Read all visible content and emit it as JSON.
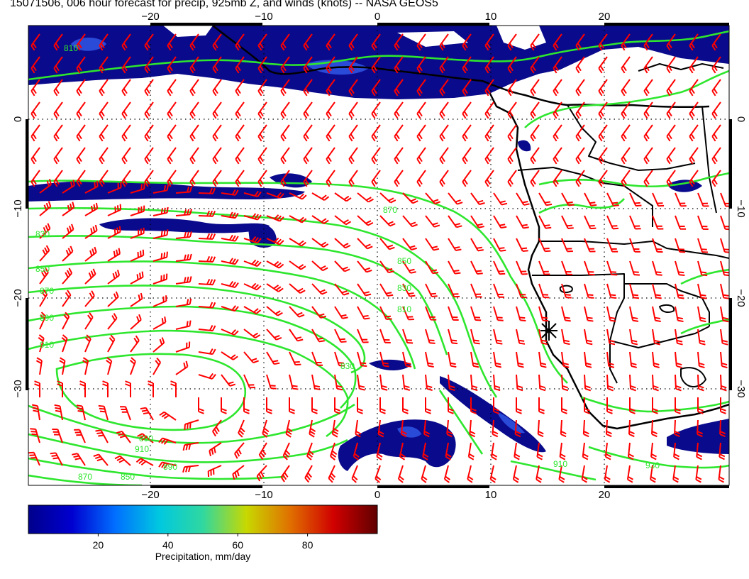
{
  "title": "15071506, 006 hour forecast for precip, 925mb Z, and winds (knots) -- NASA GEOS5",
  "map": {
    "lon_ticks": [
      "−20",
      "−10",
      "0",
      "10",
      "20"
    ],
    "lat_ticks": [
      "0",
      "−10",
      "−20",
      "−30"
    ],
    "contour_labels": [
      "810",
      "830",
      "850",
      "870",
      "890",
      "910",
      "910",
      "890",
      "870",
      "850",
      "830",
      "810",
      "830",
      "850",
      "870",
      "890",
      "910",
      "930"
    ],
    "colors": {
      "contour": "#2ee62e",
      "wind_barb": "#ff0000",
      "coast": "#000000",
      "precip_low": "#0a0a8c",
      "precip_mid": "#2a4ad8"
    }
  },
  "colorbar": {
    "ticks": [
      "20",
      "40",
      "60",
      "80"
    ],
    "label": "Precipitation, mm/day",
    "range": [
      0,
      100
    ],
    "stops": [
      "#00008b",
      "#0000d0",
      "#0070ff",
      "#00c8e0",
      "#30d8a0",
      "#c8d800",
      "#e07000",
      "#d00000",
      "#600000"
    ]
  }
}
